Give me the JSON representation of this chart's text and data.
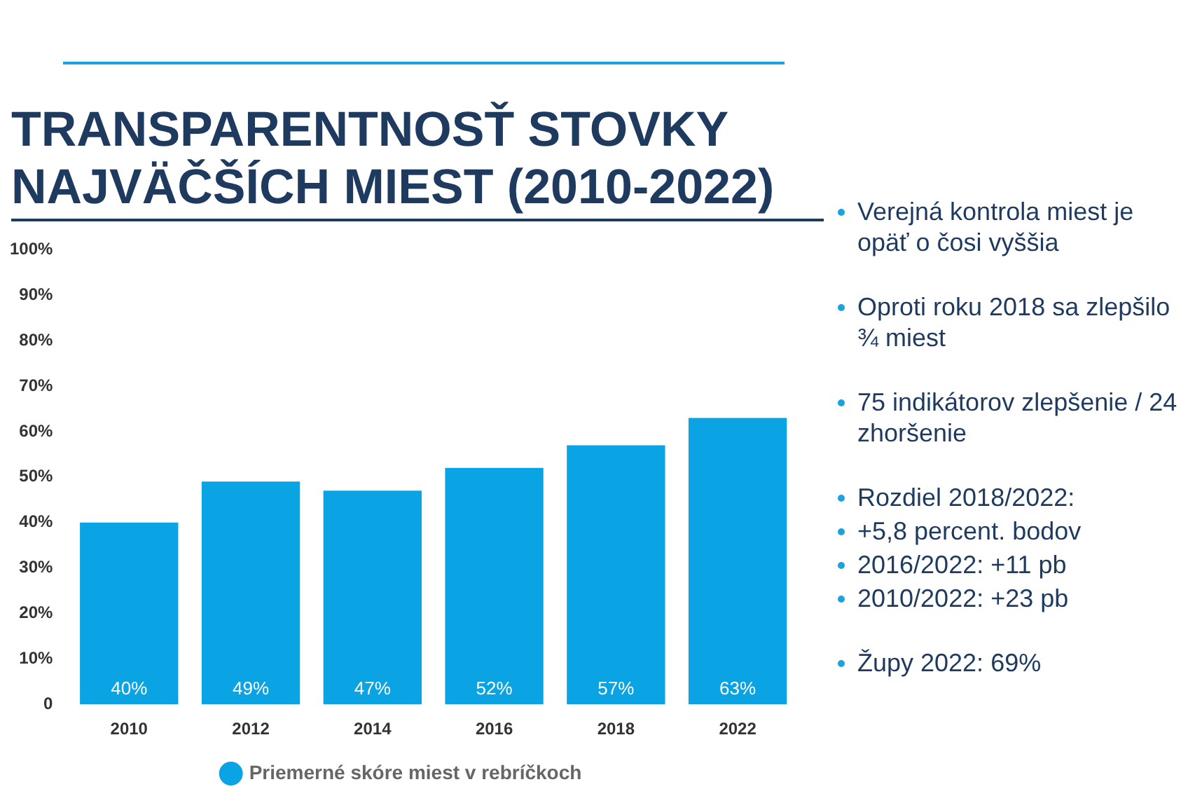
{
  "chart_data": {
    "type": "bar",
    "title": "TRANSPARENTNOSŤ STOVKY NAJVÄČŠÍCH MIEST (2010-2022)",
    "categories": [
      "2010",
      "2012",
      "2014",
      "2016",
      "2018",
      "2022"
    ],
    "series": [
      {
        "name": "Priemerné skóre miest v rebríčkoch",
        "color": "#0aa3e3",
        "values": [
          40,
          49,
          47,
          52,
          57,
          63
        ],
        "value_labels": [
          "40%",
          "49%",
          "47%",
          "52%",
          "57%",
          "63%"
        ]
      }
    ],
    "ylim": [
      0,
      100
    ],
    "yticks": [
      0,
      {
        "value": 10,
        "label": "10%"
      },
      {
        "value": 20,
        "label": "20%"
      },
      {
        "value": 30,
        "label": "30%"
      },
      {
        "value": 40,
        "label": "40%"
      },
      {
        "value": 50,
        "label": "50%"
      },
      {
        "value": 60,
        "label": "60%"
      },
      {
        "value": 70,
        "label": "70%"
      },
      {
        "value": 80,
        "label": "80%"
      },
      {
        "value": 90,
        "label": "90%"
      },
      {
        "value": 100,
        "label": "100%"
      }
    ],
    "grid": false,
    "legend": "bottom",
    "annotations": [
      "Verejná kontrola miest je opäť o čosi vyššia",
      "Oproti roku 2018 sa zlepšilo ¾ miest",
      "75 indikátorov zlepšenie / 24 zhoršenie",
      "Rozdiel 2018/2022:",
      "+5,8 percent. bodov",
      "2016/2022: +11 pb",
      "2010/2022: +23 pb",
      "Župy 2022: 69%"
    ]
  }
}
